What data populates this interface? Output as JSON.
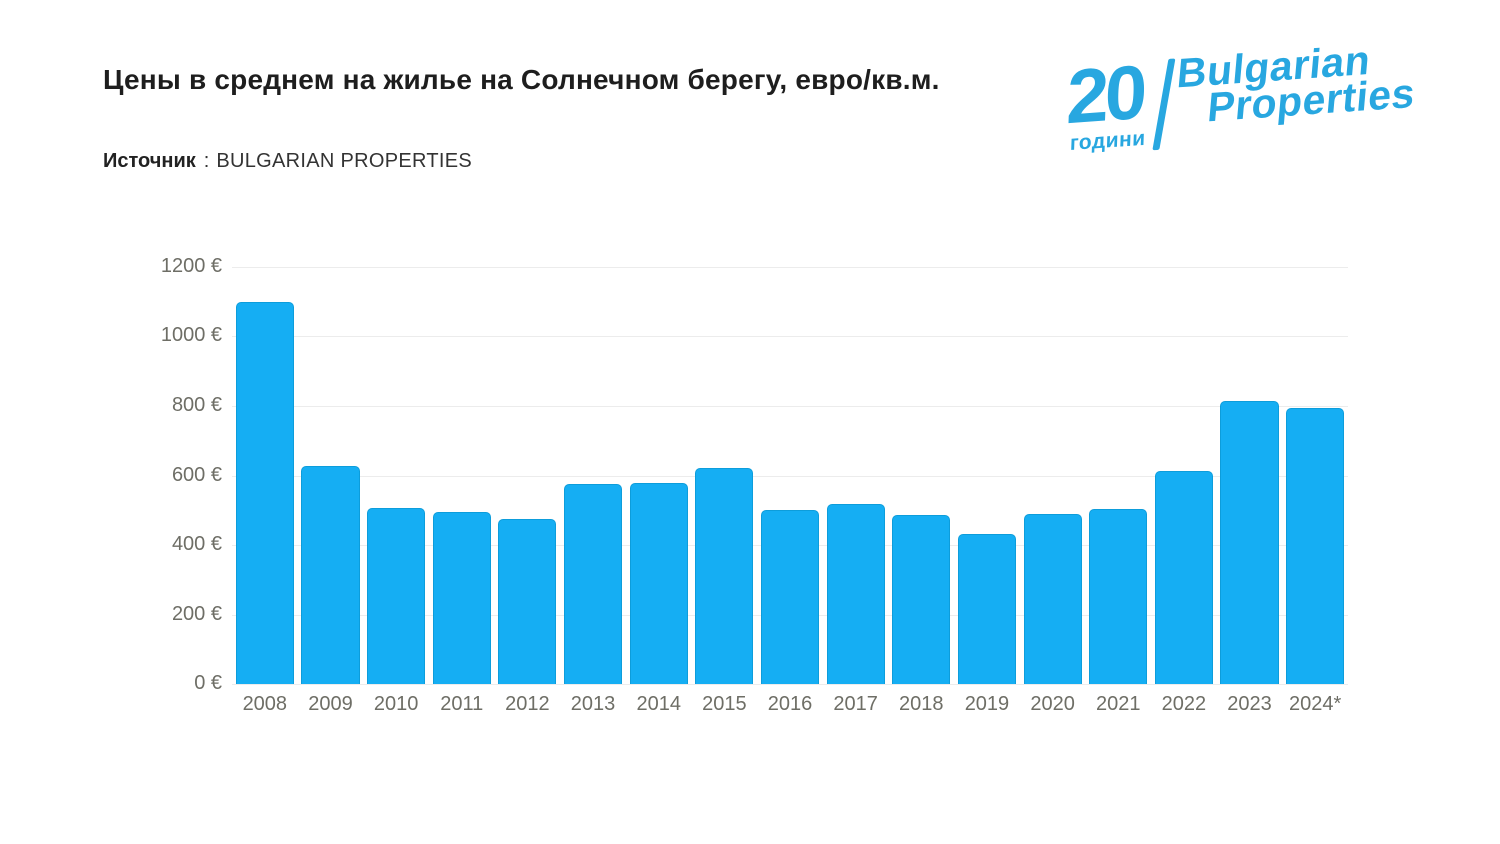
{
  "header": {
    "title": "Цены в среднем на жилье на Солнечном берегу, евро/кв.м.",
    "source_label": "Источник",
    "source_separator": ":",
    "source_value": "BULGARIAN PROPERTIES"
  },
  "logo": {
    "years_number": "20",
    "years_word": "години",
    "brand_line1": "Bulgarian",
    "brand_line2": "Properties",
    "color": "#28a7e0"
  },
  "chart_data": {
    "type": "bar",
    "title": "Цены в среднем на жилье на Солнечном берегу, евро/кв.м.",
    "xlabel": "",
    "ylabel": "",
    "categories": [
      "2008",
      "2009",
      "2010",
      "2011",
      "2012",
      "2013",
      "2014",
      "2015",
      "2016",
      "2017",
      "2018",
      "2019",
      "2020",
      "2021",
      "2022",
      "2023",
      "2024*"
    ],
    "values": [
      1100,
      627,
      507,
      495,
      475,
      576,
      579,
      622,
      502,
      517,
      485,
      433,
      489,
      504,
      613,
      814,
      795
    ],
    "value_unit": "€/кв.м",
    "ylim": [
      0,
      1200
    ],
    "ytick_step": 200,
    "yticks": [
      "1200 €",
      "1000 €",
      "800 €",
      "600 €",
      "400 €",
      "200 €",
      "0 €"
    ],
    "grid": true,
    "legend": "none",
    "bar_color": "#15aef3",
    "bar_border_color": "#0d9ddb",
    "gridline_color": "#ececec",
    "axis_label_color": "#6e6e66"
  }
}
